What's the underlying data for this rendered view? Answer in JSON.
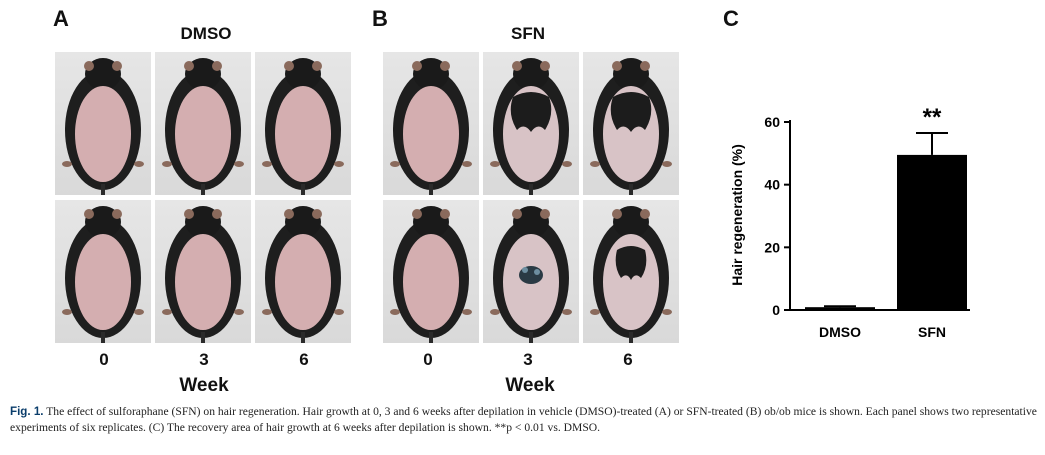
{
  "panels": {
    "A": {
      "letter": "A",
      "title": "DMSO",
      "x_ticks": [
        "0",
        "3",
        "6"
      ],
      "x_label": "Week"
    },
    "B": {
      "letter": "B",
      "title": "SFN",
      "x_ticks": [
        "0",
        "3",
        "6"
      ],
      "x_label": "Week"
    },
    "C": {
      "letter": "C"
    }
  },
  "chart_data": {
    "type": "bar",
    "categories": [
      "DMSO",
      "SFN"
    ],
    "values": [
      0.9,
      49.5
    ],
    "errors": [
      0.3,
      7.0
    ],
    "ylabel": "Hair regeneration (%)",
    "ylim": [
      0,
      60
    ],
    "yticks": [
      "0",
      "20",
      "40",
      "60"
    ],
    "significance": [
      "",
      "**"
    ],
    "bar_color": "#000000"
  },
  "caption": {
    "label": "Fig. 1.",
    "text": "The effect of sulforaphane (SFN) on hair regeneration. Hair growth at 0, 3 and 6 weeks after depilation in vehicle (DMSO)-treated (A) or SFN-treated (B) ob/ob mice is shown. Each panel shows two representative experiments of six replicates. (C) The recovery area of hair growth at 6 weeks after depilation is shown. **p < 0.01 vs. DMSO."
  }
}
